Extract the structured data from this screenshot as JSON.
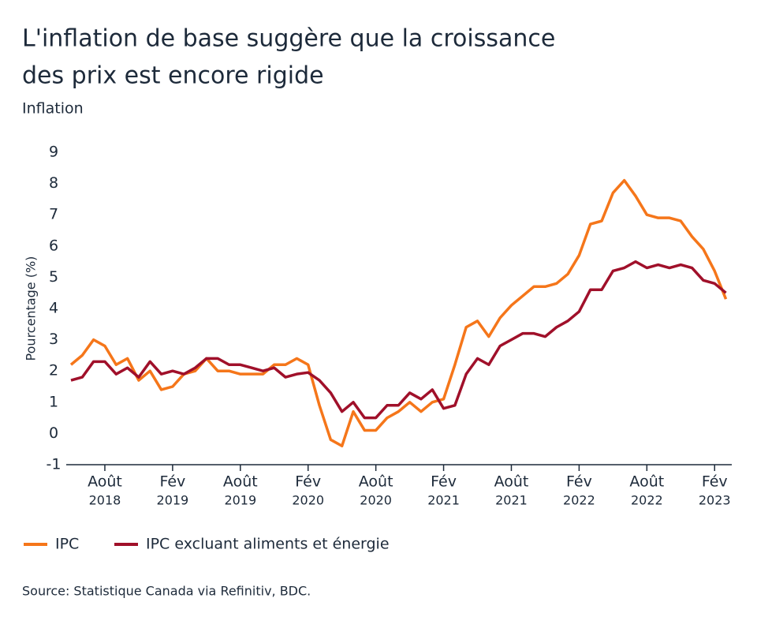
{
  "chart_data": {
    "type": "line",
    "title": [
      "L'inflation de base suggère que la croissance",
      "des prix est encore rigide"
    ],
    "subtitle": "Inflation",
    "y_label": "Pourcentage (%)",
    "source": "Source: Statistique Canada via Refinitiv, BDC.",
    "categories": [
      null,
      null,
      null,
      [
        "Août",
        "2018"
      ],
      null,
      null,
      null,
      null,
      null,
      [
        "Fév",
        "2019"
      ],
      null,
      null,
      null,
      null,
      null,
      [
        "Août",
        "2019"
      ],
      null,
      null,
      null,
      null,
      null,
      [
        "Fév",
        "2020"
      ],
      null,
      null,
      null,
      null,
      null,
      [
        "Août",
        "2020"
      ],
      null,
      null,
      null,
      null,
      null,
      [
        "Fév",
        "2021"
      ],
      null,
      null,
      null,
      null,
      null,
      [
        "Août",
        "2021"
      ],
      null,
      null,
      null,
      null,
      null,
      [
        "Fév",
        "2022"
      ],
      null,
      null,
      null,
      null,
      null,
      [
        "Août",
        "2022"
      ],
      null,
      null,
      null,
      null,
      null,
      [
        "Fév",
        "2023"
      ],
      null
    ],
    "series": [
      {
        "name": "IPC",
        "color": "#f5761a",
        "values": [
          2.2,
          2.5,
          3.0,
          2.8,
          2.2,
          2.4,
          1.7,
          2.0,
          1.4,
          1.5,
          1.9,
          2.0,
          2.4,
          2.0,
          2.0,
          1.9,
          1.9,
          1.9,
          2.2,
          2.2,
          2.4,
          2.2,
          0.9,
          -0.2,
          -0.4,
          0.7,
          0.1,
          0.1,
          0.5,
          0.7,
          1.0,
          0.7,
          1.0,
          1.1,
          2.2,
          3.4,
          3.6,
          3.1,
          3.7,
          4.1,
          4.4,
          4.7,
          4.7,
          4.8,
          5.1,
          5.7,
          6.7,
          6.8,
          7.7,
          8.1,
          7.6,
          7.0,
          6.9,
          6.9,
          6.8,
          6.3,
          5.9,
          5.2,
          4.3
        ]
      },
      {
        "name": "IPC excluant aliments et énergie",
        "color": "#a0102a",
        "values": [
          1.7,
          1.8,
          2.3,
          2.3,
          1.9,
          2.1,
          1.8,
          2.3,
          1.9,
          2.0,
          1.9,
          2.1,
          2.4,
          2.4,
          2.2,
          2.2,
          2.1,
          2.0,
          2.1,
          1.8,
          1.9,
          1.95,
          1.7,
          1.3,
          0.7,
          1.0,
          0.5,
          0.5,
          0.9,
          0.9,
          1.3,
          1.1,
          1.4,
          0.8,
          0.9,
          1.9,
          2.4,
          2.2,
          2.8,
          3.0,
          3.2,
          3.2,
          3.1,
          3.4,
          3.6,
          3.9,
          4.6,
          4.6,
          5.2,
          5.3,
          5.5,
          5.3,
          5.4,
          5.3,
          5.4,
          5.3,
          4.9,
          4.8,
          4.5
        ]
      }
    ],
    "ylim": [
      -1,
      9
    ],
    "yticks": [
      -1,
      0,
      1,
      2,
      3,
      4,
      5,
      6,
      7,
      8,
      9
    ]
  }
}
